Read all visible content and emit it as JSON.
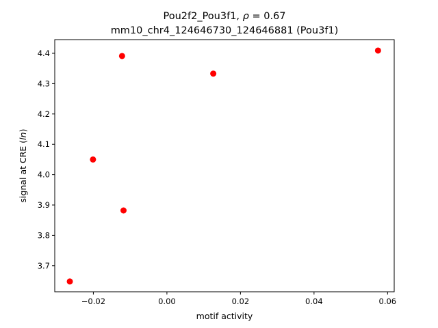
{
  "chart_data": {
    "type": "scatter",
    "title_line1_prefix": "Pou2f2_Pou3f1, ",
    "title_line1_rho": "ρ",
    "title_line1_suffix": " = 0.67",
    "title_line2": "mm10_chr4_124646730_124646881 (Pou3f1)",
    "xlabel": "motif activity",
    "ylabel_prefix": "signal at CRE (",
    "ylabel_ln": "ln",
    "ylabel_suffix": ")",
    "xlim": [
      -0.0305,
      0.0618
    ],
    "ylim": [
      3.614,
      4.445
    ],
    "x_ticks": [
      -0.02,
      0.0,
      0.02,
      0.04,
      0.06
    ],
    "x_tick_labels": [
      "−0.02",
      "0.00",
      "0.02",
      "0.04",
      "0.06"
    ],
    "y_ticks": [
      3.7,
      3.8,
      3.9,
      4.0,
      4.1,
      4.2,
      4.3,
      4.4
    ],
    "y_tick_labels": [
      "3.7",
      "3.8",
      "3.9",
      "4.0",
      "4.1",
      "4.2",
      "4.3",
      "4.4"
    ],
    "grid": false,
    "marker_color": "#ff0000",
    "points": [
      {
        "x": -0.0264,
        "y": 3.648
      },
      {
        "x": -0.0201,
        "y": 4.05
      },
      {
        "x": -0.0122,
        "y": 4.391
      },
      {
        "x": -0.0118,
        "y": 3.882
      },
      {
        "x": 0.0126,
        "y": 4.333
      },
      {
        "x": 0.0574,
        "y": 4.409
      }
    ]
  }
}
